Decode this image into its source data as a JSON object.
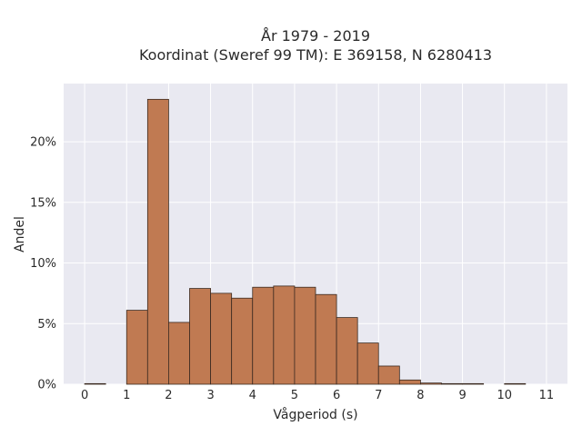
{
  "chart_data": {
    "type": "bar",
    "title_line1": "År 1979 - 2019",
    "title_line2": "Koordinat (Sweref 99 TM): E 369158, N 6280413",
    "xlabel": "Vågperiod (s)",
    "ylabel": "Andel",
    "bin_width": 0.5,
    "bins_start": [
      0,
      0.5,
      1,
      1.5,
      2,
      2.5,
      3,
      3.5,
      4,
      4.5,
      5,
      5.5,
      6,
      6.5,
      7,
      7.5,
      8,
      8.5,
      9,
      9.5,
      10,
      10.5
    ],
    "values": [
      0.05,
      0,
      6.1,
      23.5,
      5.1,
      7.9,
      7.5,
      7.1,
      8.0,
      8.1,
      8.0,
      7.4,
      5.5,
      3.4,
      1.5,
      0.35,
      0.1,
      0.05,
      0.05,
      0,
      0.05,
      0
    ],
    "x_ticks": [
      "0",
      "1",
      "2",
      "3",
      "4",
      "5",
      "6",
      "7",
      "8",
      "9",
      "10",
      "11"
    ],
    "y_ticks": [
      "0%",
      "5%",
      "10%",
      "15%",
      "20%"
    ],
    "y_tick_values": [
      0,
      5,
      10,
      15,
      20
    ],
    "xlim": [
      -0.5,
      11.5
    ],
    "ylim": [
      0,
      24.8
    ],
    "grid": true,
    "colors": {
      "bar_fill": "#c07a52",
      "bar_stroke": "#3a2a20",
      "plot_bg": "#e9e9f1",
      "grid": "#ffffff"
    }
  }
}
